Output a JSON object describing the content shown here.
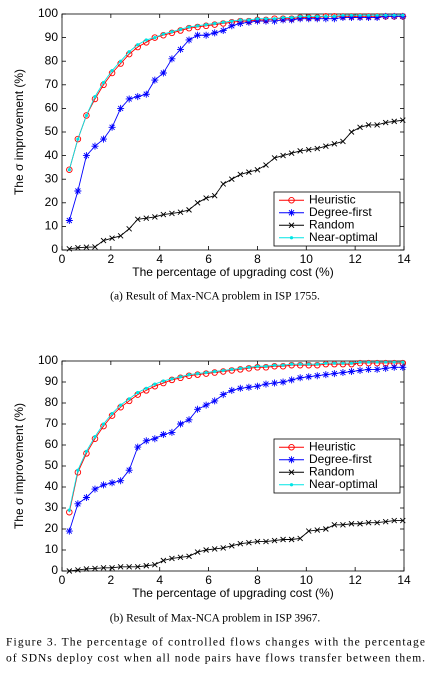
{
  "chart_data": [
    {
      "type": "line",
      "x_label": "The percentage of upgrading cost (%)",
      "y_label": "The σ improvement (%)",
      "caption": "(a)  Result of Max-NCA problem in ISP 1755.",
      "xlim": [
        0,
        14
      ],
      "xticks": [
        0,
        2,
        4,
        6,
        8,
        10,
        12,
        14
      ],
      "ylim": [
        0,
        100
      ],
      "yticks": [
        0,
        10,
        20,
        30,
        40,
        50,
        60,
        70,
        80,
        90,
        100
      ],
      "legend": "lower right",
      "x": [
        0.3,
        0.65,
        1,
        1.35,
        1.7,
        2.05,
        2.4,
        2.75,
        3.1,
        3.45,
        3.8,
        4.15,
        4.5,
        4.85,
        5.2,
        5.55,
        5.9,
        6.25,
        6.6,
        6.95,
        7.3,
        7.65,
        8,
        8.35,
        8.7,
        9.05,
        9.4,
        9.75,
        10.1,
        10.45,
        10.8,
        11.15,
        11.5,
        11.85,
        12.2,
        12.55,
        12.9,
        13.25,
        13.6,
        13.95
      ],
      "series": [
        {
          "name": "Heuristic",
          "color": "#ff0000",
          "marker": "circle",
          "values": [
            34,
            47,
            57,
            64,
            70,
            75,
            79,
            83,
            86,
            88,
            90,
            91,
            92,
            93,
            94,
            94.5,
            95,
            95.5,
            96,
            96.5,
            97,
            97,
            97.5,
            97.5,
            98,
            98,
            98,
            98.5,
            98.5,
            98.5,
            99,
            99,
            99,
            99,
            99,
            99,
            99,
            99,
            99,
            99
          ]
        },
        {
          "name": "Degree-first",
          "color": "#0000ff",
          "marker": "star",
          "values": [
            12.5,
            25,
            40,
            44,
            47,
            52,
            60,
            64,
            65,
            66,
            72,
            75,
            81,
            85,
            89,
            91,
            91,
            92,
            93,
            95,
            96,
            96.5,
            97,
            97,
            97,
            97.5,
            97.5,
            98,
            98,
            98,
            98,
            98,
            98.5,
            98.5,
            98.5,
            98.5,
            98.5,
            99,
            99,
            99
          ]
        },
        {
          "name": "Random",
          "color": "#000000",
          "marker": "x",
          "values": [
            0.5,
            1,
            1.2,
            1.3,
            4,
            5,
            6,
            9,
            13,
            13.5,
            14,
            15,
            15.5,
            16,
            17,
            20,
            22,
            23,
            28,
            30,
            32,
            33,
            34,
            36,
            39,
            40,
            41,
            42,
            42.5,
            43,
            44,
            45,
            46,
            50,
            52,
            53,
            53,
            54,
            54.5,
            55
          ]
        },
        {
          "name": "Near-optimal",
          "color": "#00e5e5",
          "marker": "point",
          "values": [
            34,
            47,
            57,
            65,
            71,
            76,
            80,
            84,
            87,
            89,
            90,
            91.5,
            92.5,
            93.5,
            94.5,
            95,
            95.5,
            96,
            96.5,
            97,
            97.5,
            97.5,
            98,
            98,
            98,
            98.5,
            98.5,
            99,
            99,
            99,
            99,
            99,
            99.5,
            99.5,
            99.5,
            99.5,
            99.5,
            99.5,
            99.5,
            99.5
          ]
        }
      ]
    },
    {
      "type": "line",
      "x_label": "The percentage of upgrading cost (%)",
      "y_label": "The σ improvement (%)",
      "caption": "(b)  Result of Max-NCA problem in ISP 3967.",
      "xlim": [
        0,
        14
      ],
      "xticks": [
        0,
        2,
        4,
        6,
        8,
        10,
        12,
        14
      ],
      "ylim": [
        0,
        100
      ],
      "yticks": [
        0,
        10,
        20,
        30,
        40,
        50,
        60,
        70,
        80,
        90,
        100
      ],
      "legend": "center right",
      "x": [
        0.3,
        0.65,
        1,
        1.35,
        1.7,
        2.05,
        2.4,
        2.75,
        3.1,
        3.45,
        3.8,
        4.15,
        4.5,
        4.85,
        5.2,
        5.55,
        5.9,
        6.25,
        6.6,
        6.95,
        7.3,
        7.65,
        8,
        8.35,
        8.7,
        9.05,
        9.4,
        9.75,
        10.1,
        10.45,
        10.8,
        11.15,
        11.5,
        11.85,
        12.2,
        12.55,
        12.9,
        13.25,
        13.6,
        13.95
      ],
      "series": [
        {
          "name": "Heuristic",
          "color": "#ff0000",
          "marker": "circle",
          "values": [
            28,
            47,
            56,
            63,
            69,
            74,
            78,
            81,
            84,
            86,
            88,
            89.5,
            91,
            92,
            93,
            93.5,
            94,
            94.5,
            95,
            95.5,
            96,
            96.5,
            97,
            97,
            97.5,
            97.5,
            98,
            98,
            98,
            98,
            98.5,
            98.5,
            98.5,
            98.5,
            99,
            99,
            99,
            99,
            99,
            99
          ]
        },
        {
          "name": "Degree-first",
          "color": "#0000ff",
          "marker": "star",
          "values": [
            19,
            32,
            35,
            39,
            41,
            42,
            43,
            48,
            59,
            62,
            63,
            65,
            66,
            70,
            72,
            77,
            79,
            81,
            84,
            86,
            87,
            87.5,
            88,
            89,
            89.5,
            90,
            91,
            92,
            92.5,
            93,
            93.5,
            94,
            94.5,
            95,
            95.5,
            96,
            96,
            96.5,
            97,
            97
          ]
        },
        {
          "name": "Random",
          "color": "#000000",
          "marker": "x",
          "values": [
            0,
            0.5,
            1,
            1.2,
            1.5,
            1.5,
            2,
            2,
            2,
            2.5,
            3,
            5,
            6,
            6.5,
            7,
            9,
            10,
            10.5,
            11,
            12,
            13,
            13.5,
            14,
            14,
            14.5,
            15,
            15,
            15.5,
            19,
            19.5,
            20,
            22,
            22,
            22.5,
            22.5,
            23,
            23,
            23.5,
            24,
            24
          ]
        },
        {
          "name": "Near-optimal",
          "color": "#00e5e5",
          "marker": "point",
          "values": [
            29,
            48,
            57,
            64,
            70,
            75,
            79,
            82,
            85,
            87,
            89,
            90.5,
            91.5,
            92.5,
            93.5,
            94,
            94.5,
            95,
            95.5,
            96,
            96.5,
            97,
            97.5,
            97.5,
            98,
            98,
            98.5,
            98.5,
            98.5,
            98.5,
            99,
            99,
            99,
            99,
            99.5,
            99.5,
            99.5,
            99.5,
            99.5,
            99.5
          ]
        }
      ]
    }
  ],
  "figure_caption": {
    "lines": [
      "Figure 3.    The percentage of controlled flows changes with the percentage",
      "of SDNs deploy cost when all node pairs have flows transfer between them."
    ]
  }
}
